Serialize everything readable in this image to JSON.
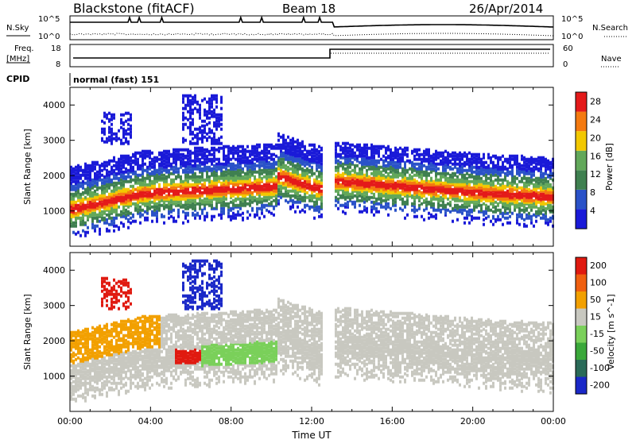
{
  "header": {
    "station": "Blackstone (fitACF)",
    "beam": "Beam 18",
    "date": "26/Apr/2014"
  },
  "noise_panel": {
    "left_label": "N.Sky",
    "right_label": "N.Search",
    "left_ticks": [
      "10^5",
      "10^0"
    ],
    "right_ticks": [
      "10^5",
      "10^0"
    ]
  },
  "freq_panel": {
    "left_label_1": "Freq.",
    "left_label_2": "[MHz]",
    "right_label": "Nave",
    "left_ticks": [
      "18",
      "8"
    ],
    "right_ticks": [
      "60",
      "0"
    ]
  },
  "cpid_panel": {
    "label": "CPID",
    "value": "normal (fast) 151"
  },
  "chart_data": [
    {
      "type": "heatmap",
      "title": "",
      "ylabel": "Slant Range [km]",
      "yticks": [
        "1000",
        "2000",
        "3000",
        "4000"
      ],
      "ylim": [
        0,
        4500
      ],
      "colorbar": {
        "label": "Power [dB]",
        "ticks": [
          "4",
          "8",
          "12",
          "16",
          "20",
          "24",
          "28"
        ],
        "colors": [
          "#1a1ad8",
          "#2a52c8",
          "#3f8050",
          "#62a85a",
          "#f2c800",
          "#f47a10",
          "#e41a1a"
        ]
      },
      "bands": [
        {
          "t_start": 0.0,
          "t_end": 3.6,
          "range_start": 1050,
          "range_end": 1500
        },
        {
          "t_start": 3.6,
          "t_end": 10.0,
          "range_start": 1500,
          "range_end": 1700
        },
        {
          "t_start": 13.2,
          "t_end": 20.8,
          "range_start": 1850,
          "range_end": 1500
        },
        {
          "t_start": 20.8,
          "t_end": 24.0,
          "range_start": 1500,
          "range_end": 1450
        }
      ]
    },
    {
      "type": "heatmap",
      "title": "",
      "xlabel": "Time UT",
      "ylabel": "Slant Range [km]",
      "xticks": [
        "00:00",
        "04:00",
        "08:00",
        "12:00",
        "16:00",
        "20:00",
        "00:00"
      ],
      "yticks": [
        "1000",
        "2000",
        "3000",
        "4000"
      ],
      "ylim": [
        0,
        4500
      ],
      "xlim": [
        0,
        24
      ],
      "colorbar": {
        "label": "Velocity [m s^-1]",
        "ticks": [
          "200",
          "100",
          "50",
          "15",
          "-15",
          "-50",
          "-100",
          "-200"
        ],
        "colors": [
          "#1a28c8",
          "#2a6a58",
          "#3aa83a",
          "#7ad05a",
          "#c8c8c0",
          "#f2a000",
          "#f06010",
          "#e01a10"
        ]
      }
    }
  ]
}
